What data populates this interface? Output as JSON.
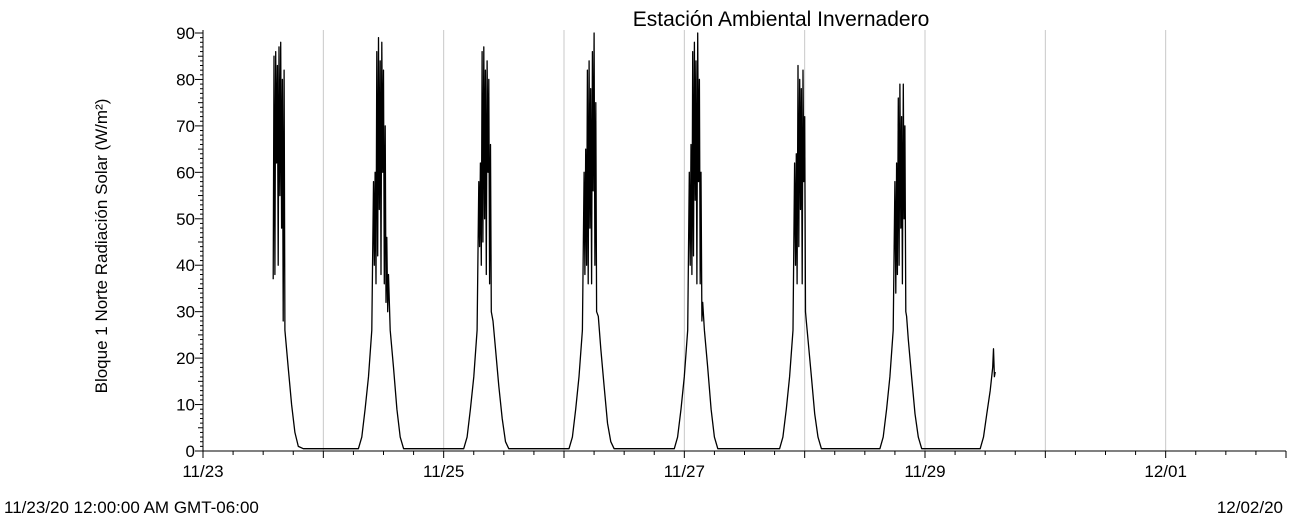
{
  "chart_data": {
    "type": "line",
    "title": "Estación Ambiental Invernadero",
    "ylabel": "Bloque 1 Norte Radiación Solar (W/m²)",
    "xlabel": "",
    "ylim": [
      0,
      90
    ],
    "y_ticks": [
      0,
      10,
      20,
      30,
      40,
      50,
      60,
      70,
      80,
      90
    ],
    "x_range": [
      "2020-11-23T00:00",
      "2020-12-02T00:00"
    ],
    "x_tick_labels": [
      "11/23",
      "11/25",
      "11/27",
      "11/29",
      "12/01"
    ],
    "grid": "vertical",
    "footer_left": "11/23/20 12:00:00 AM GMT-06:00",
    "footer_right": "12/02/20",
    "series": [
      {
        "color": "#000000",
        "points": [
          [
            "2020-11-23T14:00",
            37
          ],
          [
            "2020-11-23T14:10",
            85
          ],
          [
            "2020-11-23T14:20",
            38
          ],
          [
            "2020-11-23T14:30",
            86
          ],
          [
            "2020-11-23T14:40",
            62
          ],
          [
            "2020-11-23T14:50",
            83
          ],
          [
            "2020-11-23T15:00",
            40
          ],
          [
            "2020-11-23T15:10",
            87
          ],
          [
            "2020-11-23T15:20",
            55
          ],
          [
            "2020-11-23T15:30",
            88
          ],
          [
            "2020-11-23T15:40",
            48
          ],
          [
            "2020-11-23T15:50",
            80
          ],
          [
            "2020-11-23T16:00",
            28
          ],
          [
            "2020-11-23T16:10",
            82
          ],
          [
            "2020-11-23T16:20",
            26
          ],
          [
            "2020-11-23T17:00",
            18
          ],
          [
            "2020-11-23T17:40",
            10
          ],
          [
            "2020-11-23T18:20",
            4
          ],
          [
            "2020-11-23T19:00",
            1
          ],
          [
            "2020-11-23T20:00",
            0.5
          ],
          [
            "2020-11-24T07:00",
            0.5
          ],
          [
            "2020-11-24T07:40",
            3
          ],
          [
            "2020-11-24T08:20",
            9
          ],
          [
            "2020-11-24T09:00",
            16
          ],
          [
            "2020-11-24T09:40",
            26
          ],
          [
            "2020-11-24T10:00",
            58
          ],
          [
            "2020-11-24T10:10",
            40
          ],
          [
            "2020-11-24T10:20",
            60
          ],
          [
            "2020-11-24T10:30",
            36
          ],
          [
            "2020-11-24T10:40",
            86
          ],
          [
            "2020-11-24T10:50",
            42
          ],
          [
            "2020-11-24T11:00",
            89
          ],
          [
            "2020-11-24T11:10",
            52
          ],
          [
            "2020-11-24T11:20",
            84
          ],
          [
            "2020-11-24T11:30",
            38
          ],
          [
            "2020-11-24T11:40",
            88
          ],
          [
            "2020-11-24T11:50",
            60
          ],
          [
            "2020-11-24T12:00",
            82
          ],
          [
            "2020-11-24T12:10",
            36
          ],
          [
            "2020-11-24T12:20",
            70
          ],
          [
            "2020-11-24T12:30",
            32
          ],
          [
            "2020-11-24T12:40",
            46
          ],
          [
            "2020-11-24T12:50",
            30
          ],
          [
            "2020-11-24T13:00",
            38
          ],
          [
            "2020-11-24T13:20",
            26
          ],
          [
            "2020-11-24T14:00",
            18
          ],
          [
            "2020-11-24T14:40",
            9
          ],
          [
            "2020-11-24T15:20",
            3
          ],
          [
            "2020-11-24T16:00",
            0.5
          ],
          [
            "2020-11-25T03:00",
            0.5
          ],
          [
            "2020-11-25T04:00",
            0.5
          ],
          [
            "2020-11-25T04:40",
            3
          ],
          [
            "2020-11-25T05:20",
            9
          ],
          [
            "2020-11-25T06:00",
            16
          ],
          [
            "2020-11-25T06:40",
            26
          ],
          [
            "2020-11-25T07:00",
            58
          ],
          [
            "2020-11-25T07:10",
            44
          ],
          [
            "2020-11-25T07:20",
            62
          ],
          [
            "2020-11-25T07:30",
            40
          ],
          [
            "2020-11-25T07:40",
            86
          ],
          [
            "2020-11-25T07:50",
            45
          ],
          [
            "2020-11-25T08:00",
            87
          ],
          [
            "2020-11-25T08:10",
            50
          ],
          [
            "2020-11-25T08:20",
            82
          ],
          [
            "2020-11-25T08:30",
            38
          ],
          [
            "2020-11-25T08:40",
            84
          ],
          [
            "2020-11-25T08:50",
            60
          ],
          [
            "2020-11-25T09:00",
            80
          ],
          [
            "2020-11-25T09:10",
            36
          ],
          [
            "2020-11-25T09:20",
            66
          ],
          [
            "2020-11-25T09:30",
            30
          ],
          [
            "2020-11-25T09:50",
            28
          ],
          [
            "2020-11-25T10:20",
            22
          ],
          [
            "2020-11-25T11:00",
            14
          ],
          [
            "2020-11-25T11:40",
            7
          ],
          [
            "2020-11-25T12:20",
            2
          ],
          [
            "2020-11-25T13:00",
            0.5
          ],
          [
            "2020-11-26T00:00",
            0.5
          ],
          [
            "2020-11-26T01:00",
            0.5
          ],
          [
            "2020-11-26T01:40",
            3
          ],
          [
            "2020-11-26T02:20",
            9
          ],
          [
            "2020-11-26T03:00",
            16
          ],
          [
            "2020-11-26T03:40",
            26
          ],
          [
            "2020-11-26T04:00",
            60
          ],
          [
            "2020-11-26T04:10",
            38
          ],
          [
            "2020-11-26T04:20",
            65
          ],
          [
            "2020-11-26T04:30",
            40
          ],
          [
            "2020-11-26T04:40",
            82
          ],
          [
            "2020-11-26T04:50",
            36
          ],
          [
            "2020-11-26T05:00",
            84
          ],
          [
            "2020-11-26T05:10",
            48
          ],
          [
            "2020-11-26T05:20",
            78
          ],
          [
            "2020-11-26T05:30",
            36
          ],
          [
            "2020-11-26T05:40",
            86
          ],
          [
            "2020-11-26T05:50",
            56
          ],
          [
            "2020-11-26T06:00",
            90
          ],
          [
            "2020-11-26T06:10",
            40
          ],
          [
            "2020-11-26T06:20",
            75
          ],
          [
            "2020-11-26T06:30",
            30
          ],
          [
            "2020-11-26T06:50",
            29
          ],
          [
            "2020-11-26T07:20",
            22
          ],
          [
            "2020-11-26T08:00",
            14
          ],
          [
            "2020-11-26T08:40",
            6
          ],
          [
            "2020-11-26T09:20",
            2
          ],
          [
            "2020-11-26T10:00",
            0.5
          ],
          [
            "2020-11-26T21:00",
            0.5
          ],
          [
            "2020-11-26T22:00",
            0.5
          ],
          [
            "2020-11-26T22:40",
            3
          ],
          [
            "2020-11-26T23:20",
            9
          ],
          [
            "2020-11-27T00:00",
            16
          ],
          [
            "2020-11-27T00:40",
            26
          ],
          [
            "2020-11-27T01:00",
            60
          ],
          [
            "2020-11-27T01:10",
            40
          ],
          [
            "2020-11-27T01:20",
            66
          ],
          [
            "2020-11-27T01:30",
            38
          ],
          [
            "2020-11-27T01:40",
            86
          ],
          [
            "2020-11-27T01:50",
            42
          ],
          [
            "2020-11-27T02:00",
            88
          ],
          [
            "2020-11-27T02:10",
            54
          ],
          [
            "2020-11-27T02:20",
            84
          ],
          [
            "2020-11-27T02:30",
            36
          ],
          [
            "2020-11-27T02:40",
            90
          ],
          [
            "2020-11-27T02:50",
            58
          ],
          [
            "2020-11-27T03:00",
            80
          ],
          [
            "2020-11-27T03:10",
            36
          ],
          [
            "2020-11-27T03:20",
            60
          ],
          [
            "2020-11-27T03:30",
            28
          ],
          [
            "2020-11-27T03:40",
            32
          ],
          [
            "2020-11-27T04:00",
            26
          ],
          [
            "2020-11-27T04:40",
            18
          ],
          [
            "2020-11-27T05:20",
            9
          ],
          [
            "2020-11-27T06:00",
            3
          ],
          [
            "2020-11-27T06:40",
            0.5
          ],
          [
            "2020-11-27T18:00",
            0.5
          ],
          [
            "2020-11-27T19:00",
            0.5
          ],
          [
            "2020-11-27T19:40",
            3
          ],
          [
            "2020-11-27T20:20",
            9
          ],
          [
            "2020-11-27T21:00",
            16
          ],
          [
            "2020-11-27T21:40",
            26
          ],
          [
            "2020-11-27T22:00",
            62
          ],
          [
            "2020-11-27T22:10",
            40
          ],
          [
            "2020-11-27T22:20",
            64
          ],
          [
            "2020-11-27T22:30",
            36
          ],
          [
            "2020-11-27T22:40",
            83
          ],
          [
            "2020-11-27T22:50",
            44
          ],
          [
            "2020-11-27T23:00",
            80
          ],
          [
            "2020-11-27T23:10",
            52
          ],
          [
            "2020-11-27T23:20",
            78
          ],
          [
            "2020-11-27T23:30",
            36
          ],
          [
            "2020-11-27T23:40",
            82
          ],
          [
            "2020-11-27T23:50",
            58
          ],
          [
            "2020-11-28T00:00",
            72
          ],
          [
            "2020-11-28T00:10",
            30
          ],
          [
            "2020-11-28T00:20",
            28
          ],
          [
            "2020-11-28T00:40",
            24
          ],
          [
            "2020-11-28T01:20",
            16
          ],
          [
            "2020-11-28T02:00",
            8
          ],
          [
            "2020-11-28T02:40",
            3
          ],
          [
            "2020-11-28T03:20",
            0.5
          ],
          [
            "2020-11-28T14:00",
            0.5
          ],
          [
            "2020-11-28T15:00",
            0.5
          ],
          [
            "2020-11-28T15:40",
            3
          ],
          [
            "2020-11-28T16:20",
            9
          ],
          [
            "2020-11-28T17:00",
            16
          ],
          [
            "2020-11-28T17:40",
            26
          ],
          [
            "2020-11-28T18:00",
            58
          ],
          [
            "2020-11-28T18:10",
            34
          ],
          [
            "2020-11-28T18:20",
            62
          ],
          [
            "2020-11-28T18:30",
            38
          ],
          [
            "2020-11-28T18:40",
            76
          ],
          [
            "2020-11-28T18:50",
            40
          ],
          [
            "2020-11-28T19:00",
            79
          ],
          [
            "2020-11-28T19:10",
            48
          ],
          [
            "2020-11-28T19:20",
            72
          ],
          [
            "2020-11-28T19:30",
            36
          ],
          [
            "2020-11-28T19:40",
            79
          ],
          [
            "2020-11-28T19:50",
            50
          ],
          [
            "2020-11-28T20:00",
            70
          ],
          [
            "2020-11-28T20:10",
            30
          ],
          [
            "2020-11-28T20:20",
            29
          ],
          [
            "2020-11-28T20:40",
            24
          ],
          [
            "2020-11-28T21:20",
            16
          ],
          [
            "2020-11-28T22:00",
            8
          ],
          [
            "2020-11-28T22:40",
            3
          ],
          [
            "2020-11-28T23:20",
            0.5
          ],
          [
            "2020-11-29T10:00",
            0.5
          ],
          [
            "2020-11-29T11:00",
            0.5
          ],
          [
            "2020-11-29T11:40",
            3
          ],
          [
            "2020-11-29T12:20",
            8
          ],
          [
            "2020-11-29T13:00",
            13
          ],
          [
            "2020-11-29T13:30",
            18
          ],
          [
            "2020-11-29T13:40",
            22
          ],
          [
            "2020-11-29T13:50",
            16
          ],
          [
            "2020-11-29T14:00",
            17
          ]
        ]
      }
    ]
  }
}
